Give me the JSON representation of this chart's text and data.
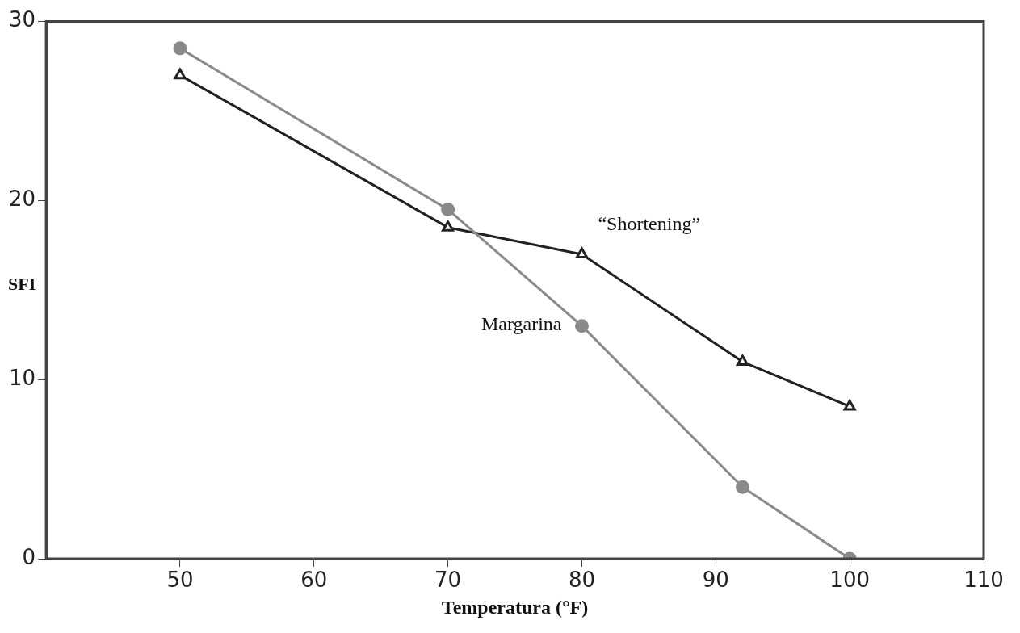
{
  "chart_data": {
    "type": "line",
    "xlabel": "Temperatura (°F)",
    "ylabel": "SFI",
    "x": [
      50,
      70,
      80,
      92,
      100
    ],
    "series": [
      {
        "name": "Margarina",
        "color": "#8a8a8a",
        "marker": "circle",
        "values": [
          28.5,
          19.5,
          13,
          4,
          0
        ]
      },
      {
        "name": "“Shortening”",
        "color": "#222222",
        "marker": "triangle",
        "values": [
          27,
          18.5,
          17,
          11,
          8.5
        ]
      }
    ],
    "xlim": [
      40,
      110
    ],
    "xticks": [
      50,
      60,
      70,
      80,
      90,
      100,
      110
    ],
    "ylim": [
      0,
      30
    ],
    "yticks": [
      0,
      10,
      20,
      30
    ],
    "grid": false,
    "legend": false
  }
}
